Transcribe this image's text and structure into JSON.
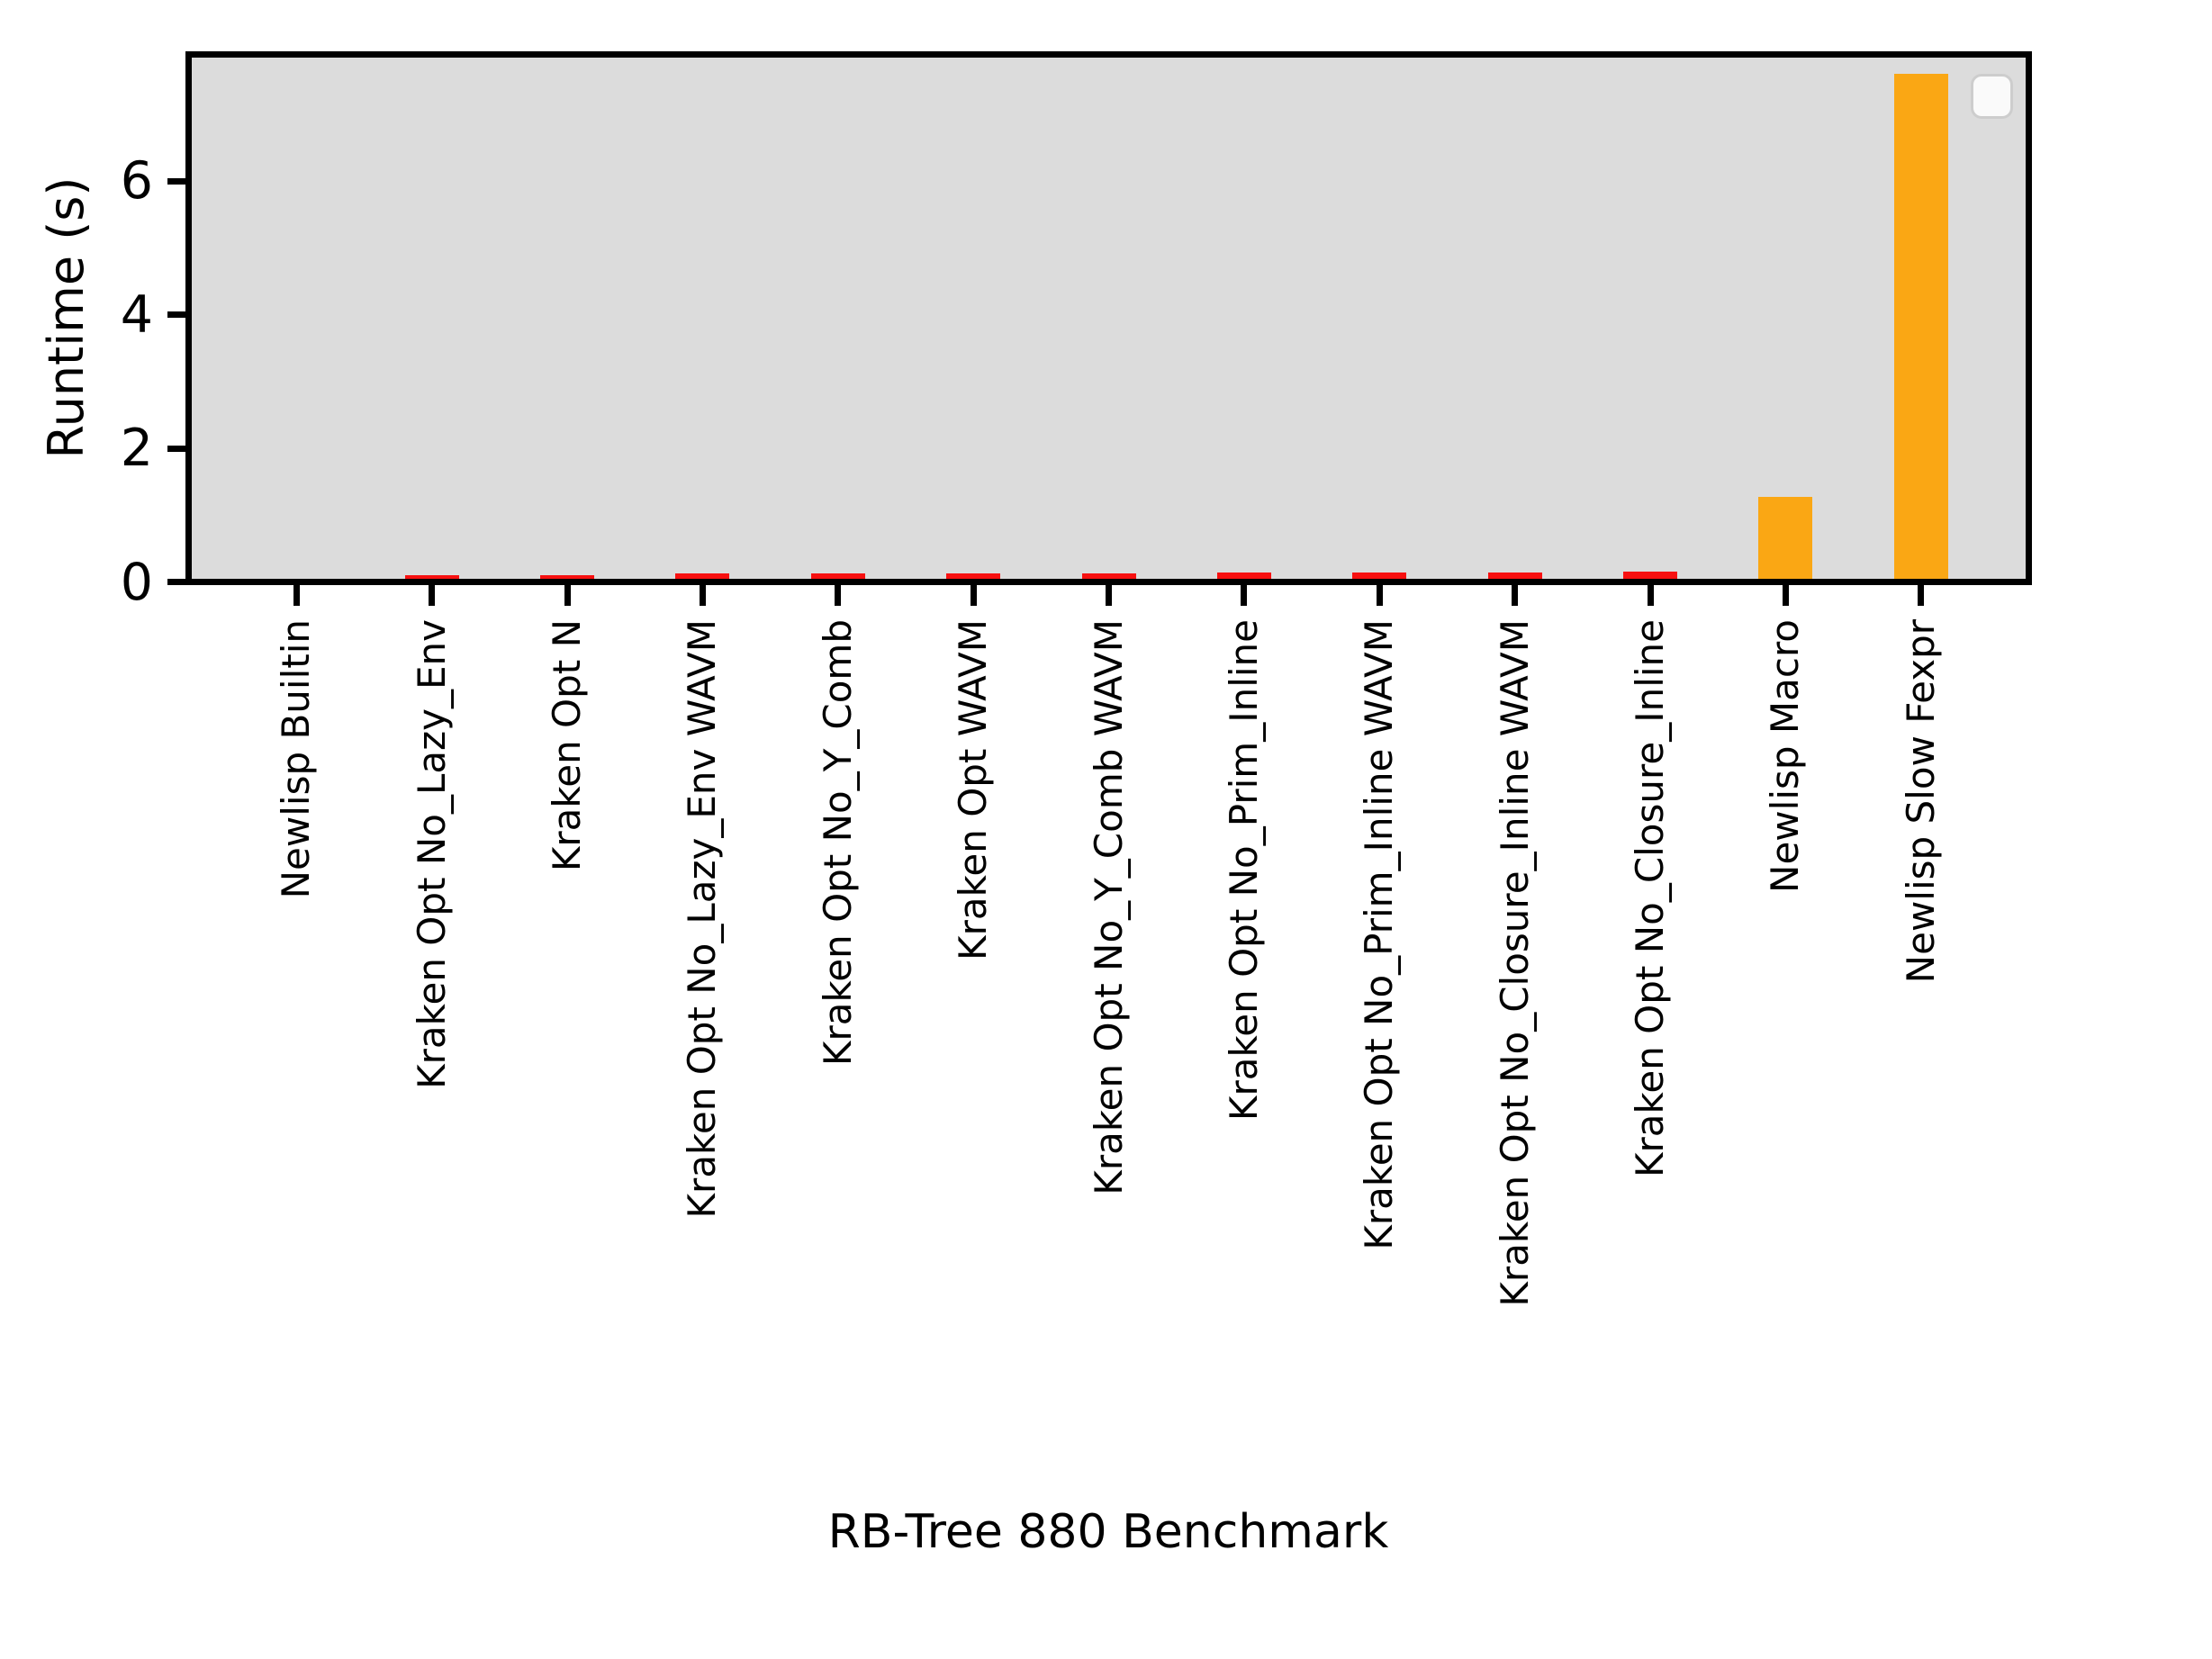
{
  "chart_data": {
    "type": "bar",
    "title": "",
    "xlabel": "RB-Tree 880 Benchmark",
    "ylabel": "Runtime (s)",
    "categories": [
      "Newlisp Builtin",
      "Kraken Opt No_Lazy_Env",
      "Kraken Opt N",
      "Kraken Opt No_Lazy_Env WAVM",
      "Kraken Opt No_Y_Comb",
      "Kraken Opt WAVM",
      "Kraken Opt No_Y_Comb WAVM",
      "Kraken Opt No_Prim_Inline",
      "Kraken Opt No_Prim_Inline WAVM",
      "Kraken Opt No_Closure_Inline WAVM",
      "Kraken Opt No_Closure_Inline",
      "Newlisp Macro",
      "Newlisp Slow Fexpr"
    ],
    "values": [
      0.0,
      0.06,
      0.06,
      0.08,
      0.08,
      0.08,
      0.08,
      0.09,
      0.1,
      0.1,
      0.11,
      1.23,
      7.55
    ],
    "bar_colors": [
      "#faa714",
      "#f71010",
      "#f71010",
      "#f71010",
      "#f71010",
      "#f71010",
      "#f71010",
      "#f71010",
      "#f71010",
      "#f71010",
      "#f71010",
      "#faa714",
      "#faa714"
    ],
    "yticks": [
      0,
      2,
      4,
      6
    ],
    "ylim": [
      0,
      7.8
    ],
    "xlim": [
      -0.82,
      12.82
    ],
    "grid": false,
    "legend": {
      "entries": [],
      "position": "upper right",
      "style": "empty-rounded-box"
    },
    "colors": {
      "kraken_bar": "#f71010",
      "newlisp_bar": "#faa714",
      "plot_background": "#dcdcdc",
      "figure_background": "#ffffff",
      "axis": "#000000"
    }
  }
}
